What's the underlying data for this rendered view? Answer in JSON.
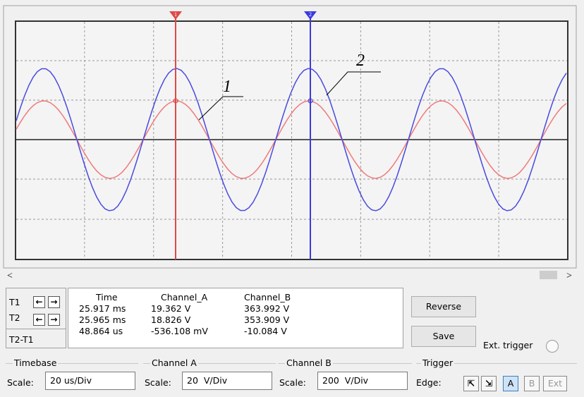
{
  "screen": {
    "cursor_1": "1",
    "cursor_2": "2",
    "callout_1": "1",
    "callout_2": "2"
  },
  "scrollbar": {
    "left": "<",
    "right": ">"
  },
  "readout": {
    "row_labels": [
      "T1",
      "T2",
      "T2-T1"
    ],
    "headers": [
      "Time",
      "Channel_A",
      "Channel_B"
    ],
    "rows": [
      [
        "25.917 ms",
        "19.362 V",
        "363.992 V"
      ],
      [
        "25.965 ms",
        "18.826 V",
        "353.909 V"
      ],
      [
        "48.864 us",
        "-536.108 mV",
        "-10.084 V"
      ]
    ]
  },
  "buttons": {
    "reverse": "Reverse",
    "save": "Save"
  },
  "ext_trigger": "Ext. trigger",
  "settings": [
    {
      "title": "Timebase",
      "scale_label": "Scale:",
      "scale": "20 us/Div"
    },
    {
      "title": "Channel A",
      "scale_label": "Scale:",
      "scale": "20  V/Div"
    },
    {
      "title": "Channel B",
      "scale_label": "Scale:",
      "scale": "200  V/Div"
    }
  ],
  "trigger": {
    "title": "Trigger",
    "edge_label": "Edge:",
    "sources": [
      "A",
      "B",
      "Ext"
    ]
  }
}
